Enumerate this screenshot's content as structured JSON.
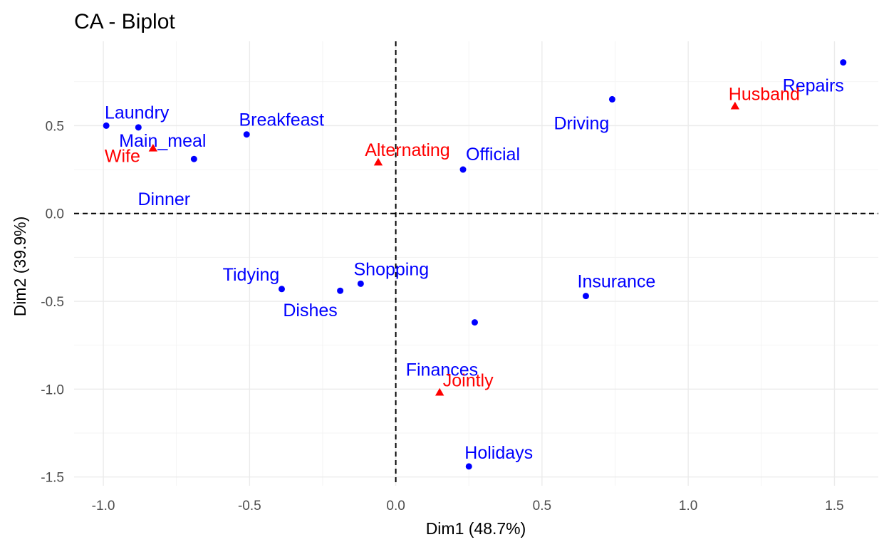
{
  "chart_data": {
    "type": "scatter",
    "title": "CA - Biplot",
    "xlabel": "Dim1 (48.7%)",
    "ylabel": "Dim2 (39.9%)",
    "xlim": [
      -1.1,
      1.65
    ],
    "ylim": [
      -1.55,
      0.98
    ],
    "xticks": [
      -1.0,
      -0.5,
      0.0,
      0.5,
      1.0,
      1.5
    ],
    "xtick_labels": [
      "-1.0",
      "-0.5",
      "0.0",
      "0.5",
      "1.0",
      "1.5"
    ],
    "yticks": [
      -1.5,
      -1.0,
      -0.5,
      0.0,
      0.5
    ],
    "ytick_labels": [
      "-1.5",
      "-1.0",
      "-0.5",
      "0.0",
      "0.5"
    ],
    "grid": true,
    "reference_lines": {
      "x": 0,
      "y": 0,
      "style": "dashed"
    },
    "series": [
      {
        "color": "#0000ff",
        "marker": "circle",
        "points": [
          {
            "label": "Laundry",
            "x": -0.99,
            "y": 0.5
          },
          {
            "label": "Main_meal",
            "x": -0.88,
            "y": 0.49
          },
          {
            "label": "Dinner",
            "x": -0.69,
            "y": 0.31
          },
          {
            "label": "Breakfeast",
            "x": -0.51,
            "y": 0.45
          },
          {
            "label": "Tidying",
            "x": -0.39,
            "y": -0.43
          },
          {
            "label": "Dishes",
            "x": -0.19,
            "y": -0.44
          },
          {
            "label": "Shopping",
            "x": -0.12,
            "y": -0.4
          },
          {
            "label": "Official",
            "x": 0.23,
            "y": 0.25
          },
          {
            "label": "Driving",
            "x": 0.74,
            "y": 0.65
          },
          {
            "label": "Finances",
            "x": 0.27,
            "y": -0.62
          },
          {
            "label": "Insurance",
            "x": 0.65,
            "y": -0.47
          },
          {
            "label": "Repairs",
            "x": 1.53,
            "y": 0.86
          },
          {
            "label": "Holidays",
            "x": 0.25,
            "y": -1.44
          }
        ]
      },
      {
        "color": "#ff0000",
        "marker": "triangle",
        "points": [
          {
            "label": "Wife",
            "x": -0.83,
            "y": 0.37
          },
          {
            "label": "Alternating",
            "x": -0.06,
            "y": 0.29
          },
          {
            "label": "Jointly",
            "x": 0.15,
            "y": -1.02
          },
          {
            "label": "Husband",
            "x": 1.16,
            "y": 0.61
          }
        ]
      }
    ]
  }
}
